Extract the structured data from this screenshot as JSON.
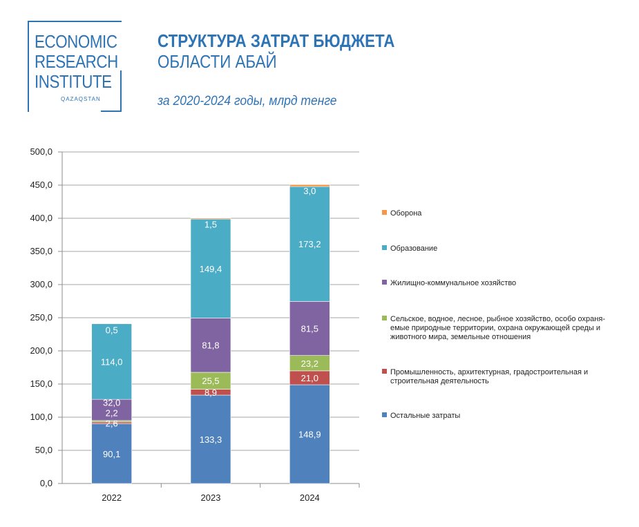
{
  "logo": {
    "line1": "ECONOMIC",
    "line2": "RESEARCH",
    "line3": "INSTITUTE",
    "sub": "QAZAQSTAN"
  },
  "header": {
    "title_line1": "СТРУКТУРА ЗАТРАТ БЮДЖЕТА",
    "title_line2": "ОБЛАСТИ АБАЙ",
    "subtitle": "за 2020-2024 годы, млрд тенге"
  },
  "chart_data": {
    "type": "bar",
    "stacked": true,
    "categories": [
      "2022",
      "2023",
      "2024"
    ],
    "ylim": [
      0,
      500
    ],
    "yticks": [
      "0,0",
      "50,0",
      "100,0",
      "150,0",
      "200,0",
      "250,0",
      "300,0",
      "350,0",
      "400,0",
      "450,0",
      "500,0"
    ],
    "grid": true,
    "legend_position": "right",
    "series": [
      {
        "name": "Остальные затраты",
        "color": "#4f81bd",
        "values": [
          90.1,
          133.3,
          148.9
        ],
        "labels": [
          "90,1",
          "133,3",
          "148,9"
        ]
      },
      {
        "name": "Промышленность, архитектурная, градостроительная и строительная деятельность",
        "color": "#c0504d",
        "values": [
          2.6,
          8.9,
          21.0
        ],
        "labels": [
          "2,6",
          "8,9",
          "21,0"
        ]
      },
      {
        "name": "Сельское, водное, лесное, рыбное хозяйство, особо охраняемые природные территории, охрана окружающей среды и животного мира, земельные отношения",
        "color": "#9bbb59",
        "values": [
          2.2,
          25.5,
          23.2
        ],
        "labels": [
          "2,2",
          "25,5",
          "23,2"
        ]
      },
      {
        "name": "Жилищно-коммунальное хозяйство",
        "color": "#8064a2",
        "values": [
          32.0,
          81.8,
          81.5
        ],
        "labels": [
          "32,0",
          "81,8",
          "81,5"
        ]
      },
      {
        "name": "Образование",
        "color": "#4bacc6",
        "values": [
          114.0,
          149.4,
          173.2
        ],
        "labels": [
          "114,0",
          "149,4",
          "173,2"
        ]
      },
      {
        "name": "Оборона",
        "color": "#f79646",
        "values": [
          0.5,
          1.5,
          3.0
        ],
        "labels": [
          "0,5",
          "1,5",
          "3,0"
        ]
      }
    ],
    "legend": [
      {
        "lines": [
          "Оборона"
        ],
        "color": "#f79646"
      },
      {
        "lines": [
          "Образование"
        ],
        "color": "#4bacc6"
      },
      {
        "lines": [
          "Жилищно-коммунальное хозяйство"
        ],
        "color": "#8064a2"
      },
      {
        "lines": [
          "Сельское, водное, лесное, рыбное хозяйство, особо охраня-",
          "емые природные территории, охрана окружающей среды и",
          "животного мира, земельные отношения"
        ],
        "color": "#9bbb59"
      },
      {
        "lines": [
          "Промышленность, архитектурная, градостроительная и",
          "строительная деятельность"
        ],
        "color": "#c0504d"
      },
      {
        "lines": [
          "Остальные затраты"
        ],
        "color": "#4f81bd"
      }
    ]
  }
}
